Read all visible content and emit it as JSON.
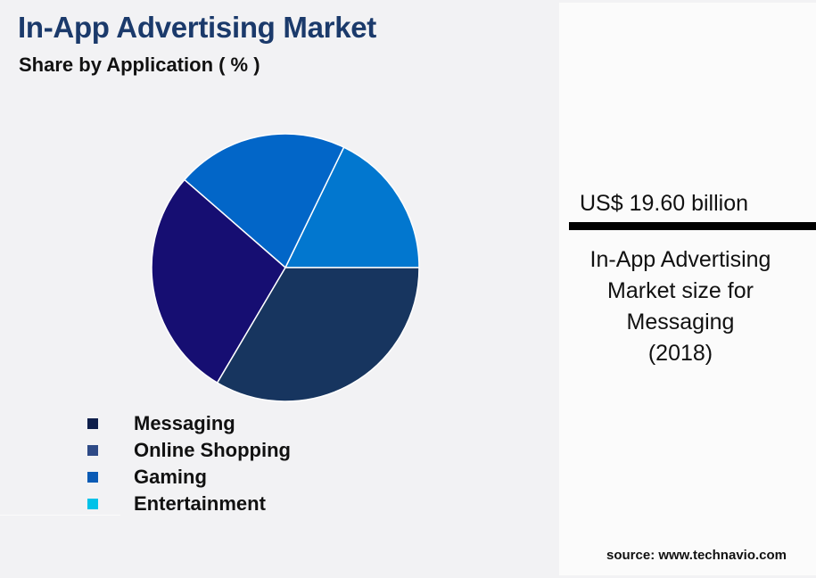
{
  "header": {
    "title": "In-App Advertising Market",
    "subtitle": "Share by Application ( % )"
  },
  "legend": {
    "items": [
      {
        "label": "Messaging",
        "color": "#0f1f4b"
      },
      {
        "label": "Online Shopping",
        "color": "#2e4a86"
      },
      {
        "label": "Gaming",
        "color": "#0b5bb5"
      },
      {
        "label": "Entertainment",
        "color": "#00c2e8"
      }
    ]
  },
  "side_panel": {
    "value": "US$ 19.60 billion",
    "description_lines": [
      "In-App Advertising",
      "Market size for",
      "Messaging",
      "(2018)"
    ]
  },
  "footer": {
    "source": "source: www.technavio.com"
  },
  "chart_data": {
    "type": "pie",
    "title": "In-App Advertising Market",
    "subtitle": "Share by Application ( % )",
    "categories": [
      "Messaging",
      "Online Shopping",
      "Gaming",
      "Entertainment"
    ],
    "values": [
      33.5,
      27.9,
      20.8,
      17.8
    ],
    "slice_colors": [
      "#17355f",
      "#160e72",
      "#0266c8",
      "#0277cf"
    ],
    "legend_colors": [
      "#0f1f4b",
      "#2e4a86",
      "#0b5bb5",
      "#00c2e8"
    ],
    "start_angle_deg": 0,
    "direction": "counterclockwise from 3 o'clock: Entertainment, Gaming, Online Shopping, Messaging",
    "data_labels": false,
    "legend_position": "bottom-left",
    "annotation": "US$ 19.60 billion — In-App Advertising Market size for Messaging (2018)"
  }
}
